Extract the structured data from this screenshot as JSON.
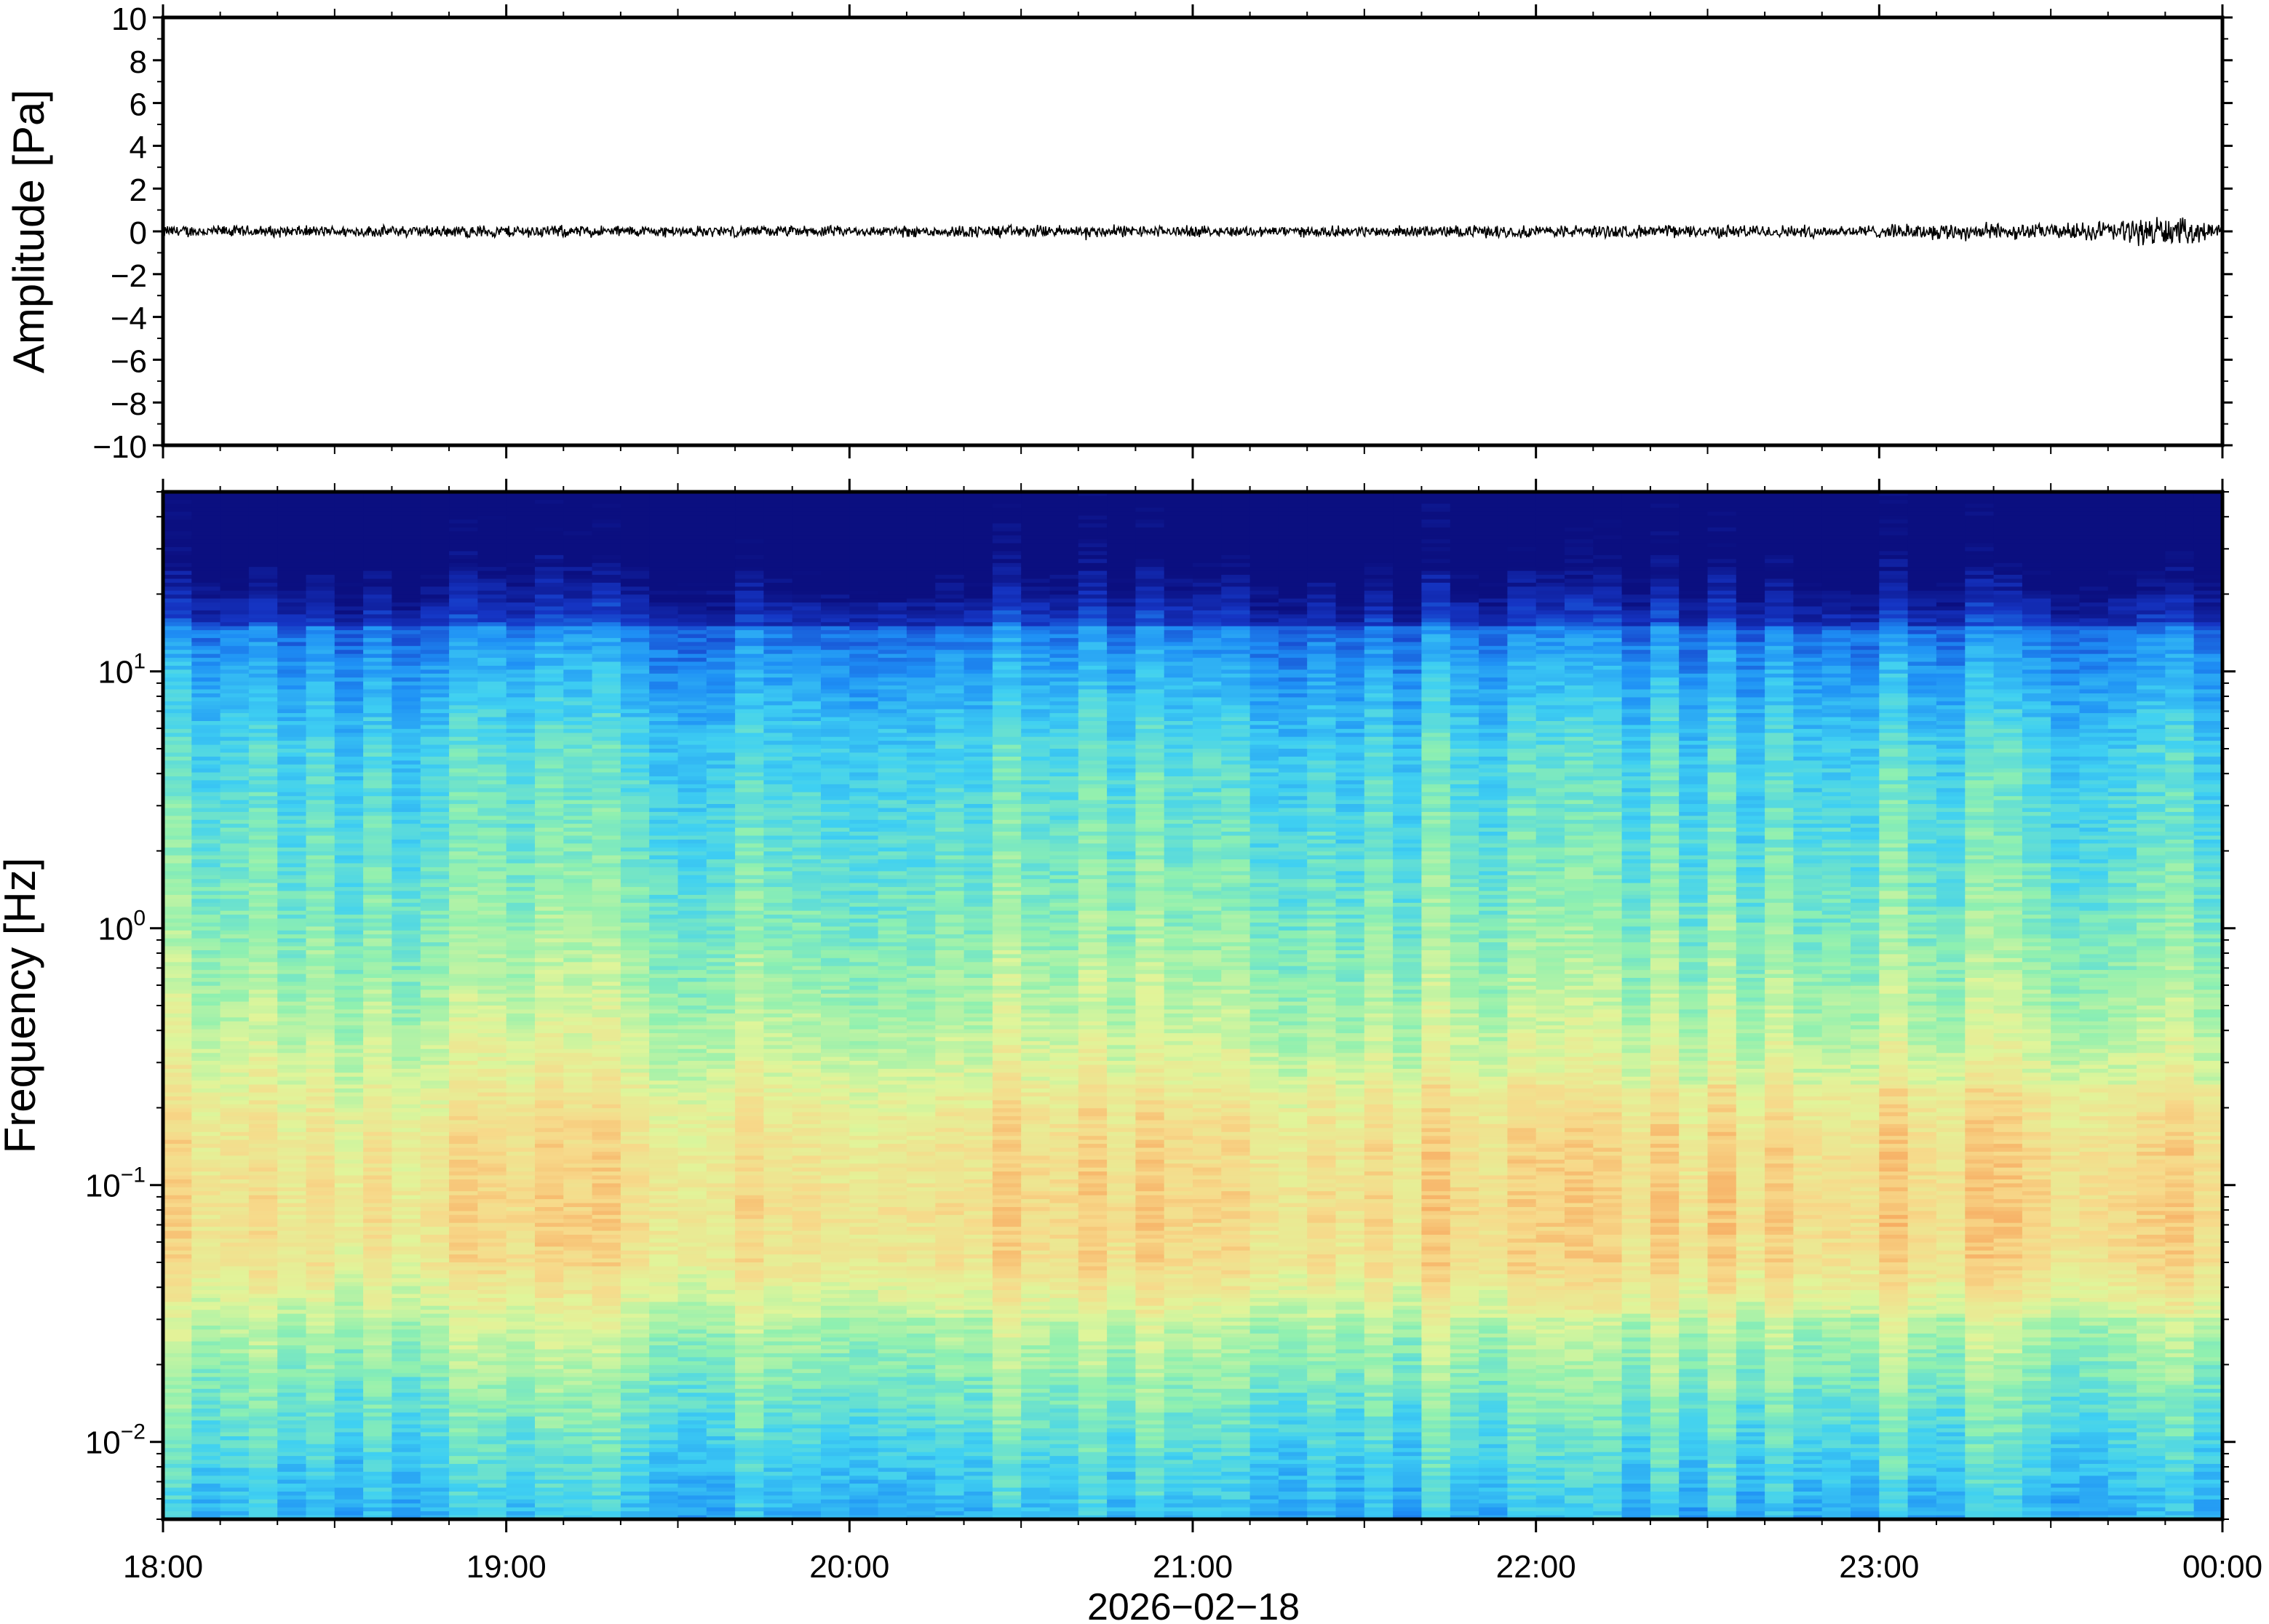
{
  "chart_data": [
    {
      "type": "line",
      "ylabel": "Amplitude [Pa]",
      "ylim": [
        -10,
        10
      ],
      "yticks": [
        "10",
        "8",
        "6",
        "4",
        "2",
        "0",
        "−2",
        "−4",
        "−6",
        "−8",
        "−10"
      ],
      "ytick_values": [
        10,
        8,
        6,
        4,
        2,
        0,
        -2,
        -4,
        -6,
        -8,
        -10
      ],
      "xlim_hours": [
        18,
        24
      ],
      "series": [
        {
          "color": "#000000",
          "description_values": "pressure trace around 0 Pa",
          "t_hours": [
            18.0,
            18.5,
            19.0,
            19.5,
            20.0,
            20.5,
            21.0,
            21.5,
            22.0,
            22.5,
            23.0,
            23.25,
            23.5,
            23.75,
            23.8,
            24.0
          ],
          "envelope_pa": [
            0.35,
            0.3,
            0.35,
            0.3,
            0.3,
            0.35,
            0.3,
            0.3,
            0.35,
            0.35,
            0.35,
            0.5,
            0.4,
            0.7,
            0.9,
            0.4
          ]
        }
      ]
    },
    {
      "type": "heatmap",
      "ylabel": "Frequency [Hz]",
      "yscale": "log",
      "ylim": [
        0.005,
        50
      ],
      "yticks": [
        {
          "value": 10,
          "base": "10",
          "exp": "1"
        },
        {
          "value": 1,
          "base": "10",
          "exp": "0"
        },
        {
          "value": 0.1,
          "base": "10",
          "exp": "−1"
        },
        {
          "value": 0.01,
          "base": "10",
          "exp": "−2"
        }
      ],
      "xlabel": "2026−02−18",
      "xlim_hours": [
        18,
        24
      ],
      "xticks": [
        "18:00",
        "19:00",
        "20:00",
        "21:00",
        "22:00",
        "23:00",
        "00:00"
      ],
      "xtick_values": [
        18,
        19,
        20,
        21,
        22,
        23,
        24
      ],
      "colormap": [
        "#0b0f80",
        "#1535c4",
        "#1e8ff5",
        "#3fd0f2",
        "#8ff0b0",
        "#e0f59a",
        "#f7d98a",
        "#f7a45a",
        "#f07840"
      ],
      "level_profile": {
        "freq_hz": [
          50,
          30,
          20,
          15,
          10,
          5,
          2,
          1,
          0.5,
          0.3,
          0.15,
          0.08,
          0.05,
          0.03,
          0.02,
          0.01,
          0.005
        ],
        "level": [
          0.0,
          0.02,
          0.12,
          0.22,
          0.3,
          0.4,
          0.45,
          0.5,
          0.56,
          0.62,
          0.7,
          0.72,
          0.7,
          0.58,
          0.52,
          0.42,
          0.33
        ]
      }
    }
  ]
}
